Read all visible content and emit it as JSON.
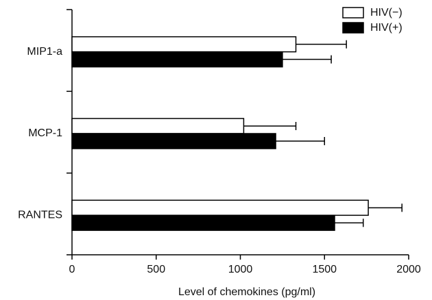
{
  "chart_data": {
    "type": "hbar",
    "xlabel": "Level of chemokines (pg/ml)",
    "categories": [
      "MIP1-a",
      "MCP-1",
      "RANTES"
    ],
    "series": [
      {
        "name": "HIV(−)",
        "color": "#ffffff",
        "values": [
          1330,
          1020,
          1760
        ],
        "errors": [
          300,
          310,
          200
        ]
      },
      {
        "name": "HIV(+)",
        "color": "#000000",
        "values": [
          1250,
          1210,
          1560
        ],
        "errors": [
          290,
          290,
          170
        ]
      }
    ],
    "xlim": [
      0,
      2000
    ],
    "xticks": [
      0,
      500,
      1000,
      1500,
      2000
    ],
    "legend": "upper right"
  }
}
